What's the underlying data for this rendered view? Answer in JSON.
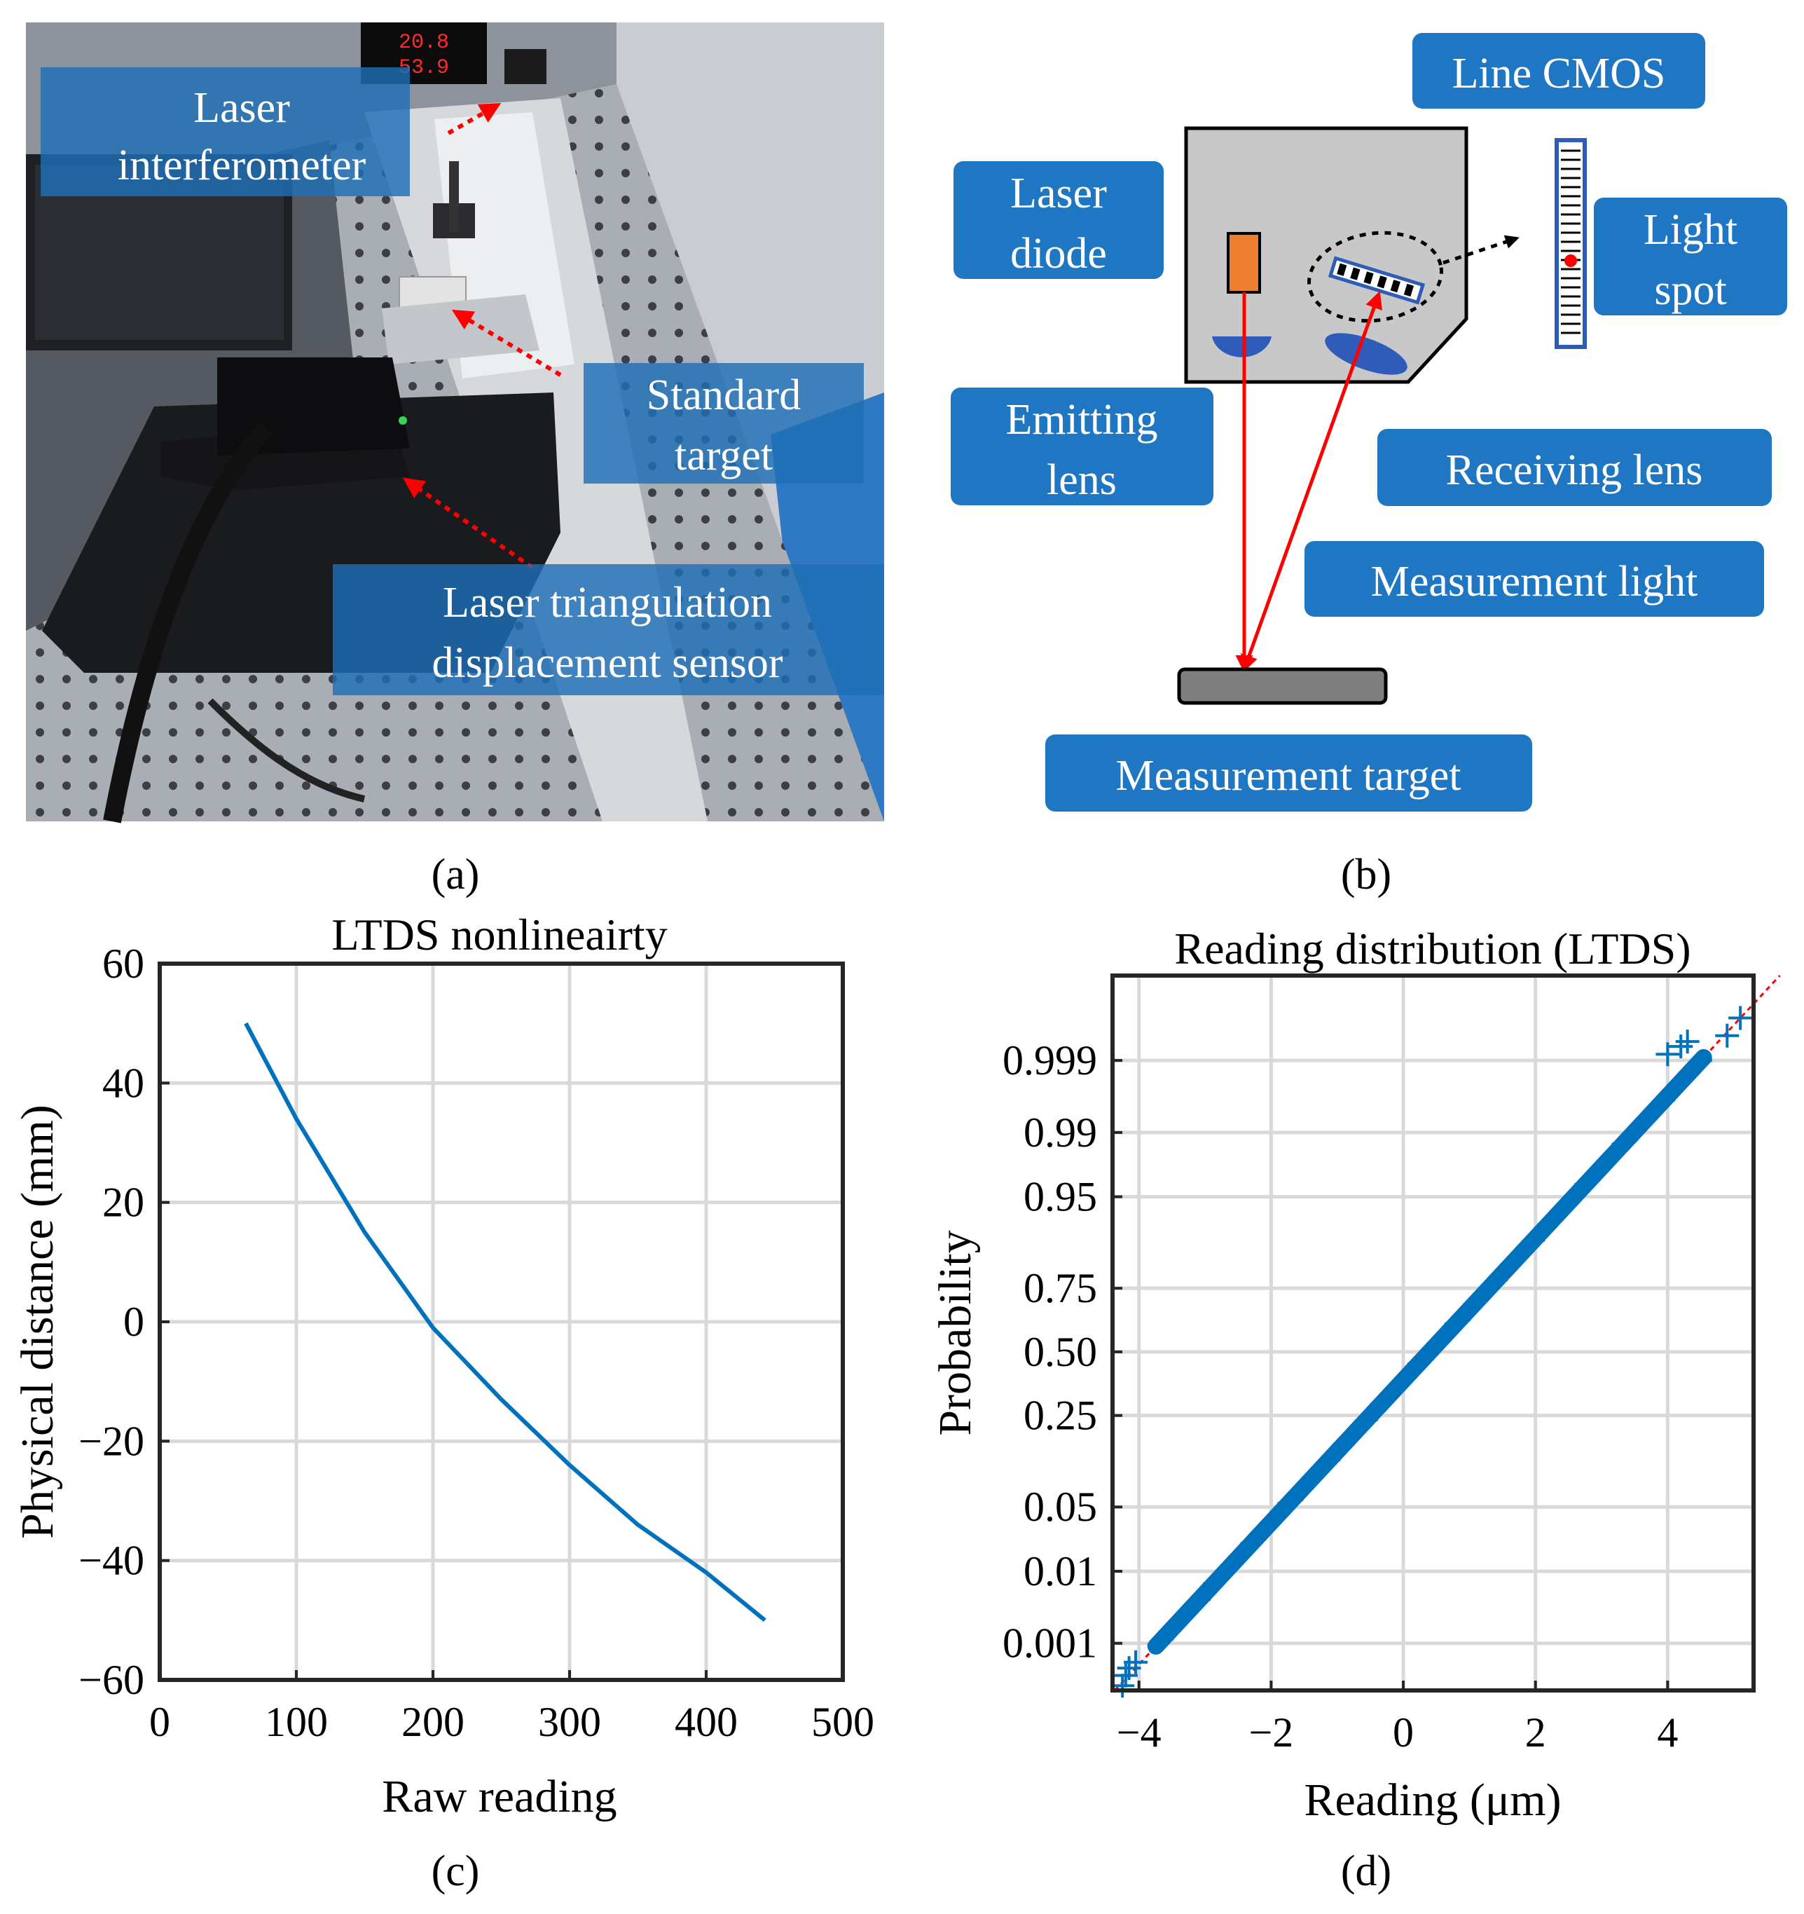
{
  "panel_a": {
    "caption": "(a)",
    "labels": {
      "laser_interferometer": [
        "Laser",
        "interferometer"
      ],
      "standard_target": [
        "Standard",
        "target"
      ],
      "ltds": [
        "Laser triangulation",
        "displacement sensor"
      ]
    },
    "display": {
      "temp": "20.8",
      "humidity": "53.9"
    }
  },
  "panel_b": {
    "caption": "(b)",
    "labels": {
      "line_cmos": [
        "Line CMOS"
      ],
      "laser_diode": [
        "Laser",
        "diode"
      ],
      "light_spot": [
        "Light",
        "spot"
      ],
      "emitting_lens": [
        "Emitting",
        "lens"
      ],
      "receiving_lens": [
        "Receiving lens"
      ],
      "measurement_light": [
        "Measurement light"
      ],
      "measurement_target": [
        "Measurement target"
      ]
    },
    "colors": {
      "label_bg": "#1f77c4",
      "beam": "#ff0000",
      "diode": "#ed7d31",
      "housing": "#c8c8c8",
      "lens": "#2e5cb8"
    }
  },
  "panel_c": {
    "caption": "(c)",
    "chart_data": {
      "type": "line",
      "title": "LTDS nonlineairty",
      "xlabel": "Raw reading",
      "ylabel": "Physical distance (mm)",
      "xlim": [
        0,
        500
      ],
      "ylim": [
        -60,
        60
      ],
      "xticks": [
        "0",
        "100",
        "200",
        "300",
        "400",
        "500"
      ],
      "yticks": [
        "60",
        "40",
        "20",
        "0",
        "−20",
        "−40",
        "−60"
      ],
      "grid": true,
      "series": [
        {
          "color": "#0072bd",
          "x": [
            63,
            100,
            150,
            200,
            250,
            300,
            350,
            400,
            443
          ],
          "y": [
            50,
            34,
            15,
            -1,
            -13,
            -24,
            -34,
            -42,
            -50
          ]
        }
      ]
    }
  },
  "panel_d": {
    "caption": "(d)",
    "chart_data": {
      "type": "scatter",
      "title": "Reading distribution (LTDS)",
      "xlabel": "Reading (μm)",
      "ylabel": "Probability",
      "xlim": [
        -4.4,
        5.3
      ],
      "scale": "normal-probability",
      "xticks": [
        "−4",
        "−2",
        "0",
        "2",
        "4"
      ],
      "yticks": [
        "0.999",
        "0.99",
        "0.95",
        "0.75",
        "0.50",
        "0.25",
        "0.05",
        "0.01",
        "0.001"
      ],
      "grid": true,
      "marker": "+",
      "color": "#0072bd",
      "fit_line_color": "#ff0000",
      "data_range": {
        "x": [
          -4.3,
          5.1
        ],
        "probability": [
          0.0002,
          0.9998
        ]
      },
      "outlier_points": [
        {
          "x": -4.25,
          "p": 0.0002
        },
        {
          "x": -4.2,
          "p": 0.0003
        },
        {
          "x": -4.15,
          "p": 0.0004
        },
        {
          "x": -4.05,
          "p": 0.0005
        },
        {
          "x": 4.0,
          "p": 0.9992
        },
        {
          "x": 4.2,
          "p": 0.9994
        },
        {
          "x": 4.3,
          "p": 0.9995
        },
        {
          "x": 4.9,
          "p": 0.9996
        },
        {
          "x": 5.1,
          "p": 0.9998
        }
      ]
    }
  }
}
